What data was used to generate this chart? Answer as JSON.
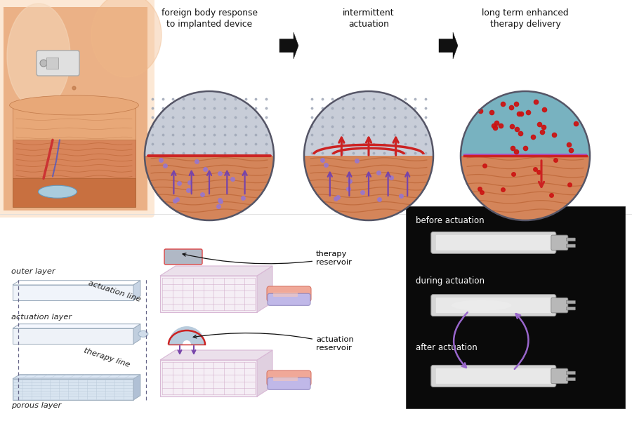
{
  "top_labels": [
    "foreign body response\nto implanted device",
    "intermittent\nactuation",
    "long term enhanced\ntherapy delivery"
  ],
  "bottom_left_labels": [
    "outer layer",
    "actuation line",
    "actuation layer",
    "therapy line",
    "porous layer"
  ],
  "bottom_mid_labels": [
    "therapy\nreservoir",
    "actuation\nreservoir"
  ],
  "bottom_right_labels": [
    "before actuation",
    "during actuation",
    "after actuation"
  ],
  "bg_color": "#ffffff",
  "skin_light": "#f2c99a",
  "skin_mid": "#e8a878",
  "skin_dark": "#d4855a",
  "tissue_orange": "#d4855a",
  "tissue_stripe": "#c07848",
  "circle_gray_bg": "#c5ccd8",
  "circle_border": "#555566",
  "device_gray": "#c8cdd8",
  "grid_dot": "#9fa8b8",
  "red_color": "#cc2222",
  "purple_color": "#7744aa",
  "teal_color": "#5faab8",
  "layer_face": "#eef2f8",
  "layer_white": "#f8faff",
  "layer_side": "#c0cede",
  "porous_face": "#d8e4f0",
  "porous_side": "#b0c0d5",
  "black_bg": "#0a0a0a",
  "gray_device": "#c8c8c8",
  "arrow_black": "#111111"
}
